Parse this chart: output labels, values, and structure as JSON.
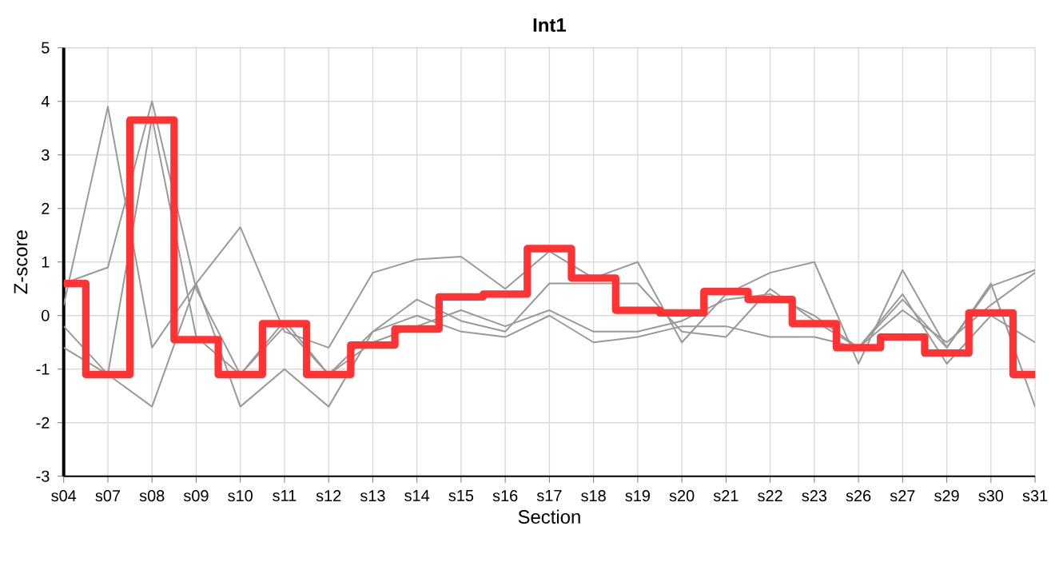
{
  "chart_data": {
    "type": "line",
    "title": "**Int1**",
    "xlabel": "Section",
    "ylabel": "Z-score",
    "categories": [
      "s04",
      "s07",
      "s08",
      "s09",
      "s10",
      "s11",
      "s12",
      "s13",
      "s14",
      "s15",
      "s16",
      "s17",
      "s18",
      "s19",
      "s20",
      "s21",
      "s22",
      "s23",
      "s26",
      "s27",
      "s29",
      "s30",
      "s31"
    ],
    "ylim": [
      -3,
      5
    ],
    "yticks": [
      -3,
      -2,
      -1,
      0,
      1,
      2,
      3,
      4,
      5
    ],
    "grid": true,
    "legend": false,
    "marker": "none",
    "series": [
      {
        "color": "#999999",
        "values": [
          0.2,
          3.9,
          -0.6,
          0.6,
          1.65,
          -0.3,
          -0.6,
          0.8,
          1.05,
          1.1,
          0.5,
          1.2,
          0.7,
          1.0,
          -0.5,
          0.4,
          0.8,
          1.0,
          -0.9,
          0.85,
          -0.6,
          0.55,
          0.85
        ]
      },
      {
        "color": "#999999",
        "values": [
          0.6,
          0.9,
          4.0,
          0.5,
          -1.1,
          -0.1,
          -1.1,
          -0.3,
          0.3,
          -0.1,
          -0.3,
          0.6,
          0.6,
          0.6,
          -0.3,
          -0.4,
          0.5,
          -0.1,
          -0.6,
          0.3,
          -0.6,
          0.6,
          -1.7
        ]
      },
      {
        "color": "#999999",
        "values": [
          -0.2,
          -1.1,
          3.7,
          -0.4,
          -1.1,
          -0.2,
          -1.1,
          -0.5,
          -0.2,
          0.1,
          -0.2,
          0.1,
          -0.3,
          -0.3,
          -0.1,
          0.3,
          0.4,
          0.0,
          -0.6,
          0.4,
          -0.9,
          0.0,
          -0.5
        ]
      },
      {
        "color": "#999999",
        "values": [
          -0.6,
          -1.1,
          -1.7,
          0.6,
          -1.7,
          -1.0,
          -1.7,
          -0.3,
          0.0,
          -0.3,
          -0.4,
          0.0,
          -0.5,
          -0.4,
          -0.2,
          -0.2,
          -0.4,
          -0.4,
          -0.6,
          0.1,
          -0.5,
          0.2,
          0.8
        ]
      },
      {
        "type": "step",
        "color": "#ff3333",
        "values": [
          0.6,
          -1.1,
          3.65,
          -0.45,
          -1.1,
          -0.15,
          -1.1,
          -0.55,
          -0.25,
          0.35,
          0.4,
          1.25,
          0.7,
          0.1,
          0.05,
          0.45,
          0.3,
          -0.15,
          -0.6,
          -0.4,
          -0.7,
          0.05,
          -1.1
        ]
      }
    ]
  }
}
